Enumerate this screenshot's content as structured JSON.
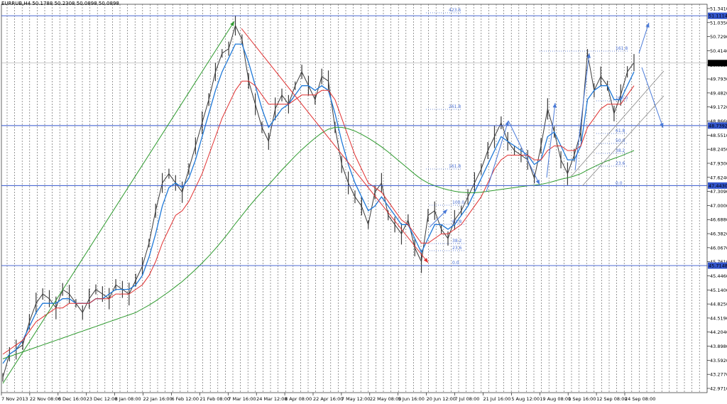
{
  "header": {
    "symbol": "EURRUB,H4",
    "ohlc": "50.1788 50.2308 50.0898 50.0898"
  },
  "colors": {
    "background": "#ffffff",
    "price": "#3a3a3a",
    "ma_fast": "#1e78d8",
    "ma_mid": "#e03030",
    "ma_slow": "#2e9a2e",
    "hline": "#3355cc",
    "label_bg": "#3355cc",
    "current_bg": "#000000",
    "fib": "#4a6fd4",
    "arrow_up_green": "#2e9a2e",
    "arrow_red": "#e03030",
    "arrow_blue": "#4a7ad8"
  },
  "chart_data": {
    "type": "line",
    "title": "",
    "x_tick_labels": [
      "7 Nov 2013",
      "22 Nov 08:00",
      "6 Dec 16:00",
      "23 Dec 12:00",
      "8 Jan 08:00",
      "22 Jan 16:00",
      "6 Feb 12:00",
      "21 Feb 08:00",
      "7 Mar 16:00",
      "24 Mar 12:00",
      "8 Apr 08:00",
      "22 Apr 16:00",
      "7 May 12:00",
      "22 May 08:00",
      "5 Jun 16:00",
      "20 Jun 12:00",
      "7 Jul 08:00",
      "21 Jul 16:00",
      "5 Aug 12:00",
      "19 Aug 08:00",
      "1 Sep 16:00",
      "12 Sep 08:00",
      "24 Sep 08:00"
    ],
    "y_tick_labels": [
      "51.3410",
      "51.0350",
      "50.7290",
      "50.4140",
      "50.0898",
      "49.7930",
      "49.4820",
      "49.1720",
      "48.8660",
      "48.5510",
      "48.2450",
      "47.9300",
      "47.6240",
      "47.3090",
      "47.0000",
      "46.6880",
      "46.3820",
      "46.0670",
      "45.7610",
      "45.4460",
      "45.1400",
      "44.8250",
      "44.5190",
      "44.2040",
      "43.8980",
      "43.5920",
      "43.2770",
      "42.9710"
    ],
    "ylim": [
      42.97,
      51.36
    ],
    "current_price": "50.0898",
    "horizontal_levels": [
      {
        "value": 51.1114,
        "label": "51.1114"
      },
      {
        "value": 48.7392,
        "label": "48.7392"
      },
      {
        "value": 47.443,
        "label": "47.4430"
      },
      {
        "value": 45.7148,
        "label": "45.7148"
      }
    ],
    "fib_labels": [
      "423.6",
      "261.8",
      "161.8",
      "100.0",
      "61.8",
      "38.2",
      "23.6",
      "0.0",
      "161.8",
      "100.0",
      "61.8",
      "50.0",
      "38.2",
      "23.6",
      "0.0"
    ],
    "series": [
      {
        "name": "Price",
        "values": [
          43.3,
          43.8,
          43.9,
          44.0,
          44.5,
          44.9,
          45.1,
          45.0,
          44.8,
          45.2,
          45.1,
          44.9,
          44.7,
          45.0,
          45.2,
          45.1,
          45.0,
          45.3,
          45.2,
          45.1,
          45.4,
          45.7,
          46.2,
          46.9,
          47.5,
          47.7,
          47.5,
          47.3,
          47.8,
          48.3,
          48.8,
          49.3,
          49.9,
          50.3,
          50.4,
          50.9,
          50.6,
          49.7,
          49.2,
          48.7,
          48.4,
          49.1,
          49.4,
          49.2,
          49.6,
          49.9,
          49.6,
          49.3,
          49.8,
          49.7,
          48.7,
          47.9,
          47.5,
          47.2,
          47.0,
          46.6,
          47.3,
          47.5,
          46.8,
          46.6,
          46.4,
          46.7,
          46.1,
          45.8,
          46.8,
          46.9,
          46.5,
          46.3,
          46.7,
          46.9,
          47.2,
          47.5,
          47.8,
          48.2,
          48.5,
          48.8,
          48.4,
          48.2,
          48.1,
          48.0,
          47.6,
          48.3,
          49.1,
          48.6,
          48.0,
          47.7,
          48.1,
          48.6,
          50.3,
          49.5,
          49.8,
          49.6,
          49.0,
          49.4,
          49.9,
          50.1
        ]
      },
      {
        "name": "MA fast",
        "values": [
          43.6,
          43.8,
          43.9,
          44.1,
          44.4,
          44.7,
          44.9,
          44.9,
          44.9,
          45.0,
          45.0,
          44.9,
          44.9,
          44.9,
          45.0,
          45.0,
          45.1,
          45.2,
          45.2,
          45.2,
          45.3,
          45.5,
          45.9,
          46.4,
          47.0,
          47.4,
          47.5,
          47.4,
          47.6,
          48.0,
          48.5,
          49.0,
          49.5,
          49.9,
          50.2,
          50.5,
          50.5,
          50.1,
          49.6,
          49.1,
          48.7,
          48.9,
          49.1,
          49.2,
          49.4,
          49.6,
          49.6,
          49.5,
          49.6,
          49.5,
          49.0,
          48.4,
          47.9,
          47.5,
          47.2,
          46.9,
          47.0,
          47.2,
          47.0,
          46.8,
          46.6,
          46.6,
          46.3,
          46.0,
          46.3,
          46.6,
          46.6,
          46.5,
          46.6,
          46.8,
          47.0,
          47.3,
          47.6,
          47.9,
          48.2,
          48.5,
          48.4,
          48.3,
          48.2,
          48.1,
          47.9,
          48.0,
          48.5,
          48.6,
          48.3,
          48.0,
          48.0,
          48.3,
          49.3,
          49.5,
          49.6,
          49.6,
          49.3,
          49.3,
          49.6,
          49.9
        ]
      },
      {
        "name": "MA mid",
        "values": [
          43.8,
          43.9,
          44.0,
          44.1,
          44.3,
          44.5,
          44.6,
          44.7,
          44.8,
          44.8,
          44.9,
          44.9,
          44.9,
          44.9,
          45.0,
          45.0,
          45.0,
          45.1,
          45.1,
          45.1,
          45.2,
          45.3,
          45.5,
          45.8,
          46.2,
          46.5,
          46.8,
          46.9,
          47.1,
          47.4,
          47.7,
          48.1,
          48.5,
          48.9,
          49.2,
          49.5,
          49.7,
          49.7,
          49.6,
          49.4,
          49.2,
          49.2,
          49.2,
          49.2,
          49.3,
          49.4,
          49.4,
          49.4,
          49.5,
          49.5,
          49.3,
          48.9,
          48.5,
          48.1,
          47.8,
          47.5,
          47.4,
          47.3,
          47.1,
          46.9,
          46.7,
          46.6,
          46.4,
          46.2,
          46.2,
          46.3,
          46.4,
          46.4,
          46.5,
          46.6,
          46.8,
          47.0,
          47.2,
          47.5,
          47.8,
          48.0,
          48.1,
          48.1,
          48.1,
          48.1,
          48.0,
          48.0,
          48.2,
          48.3,
          48.3,
          48.2,
          48.2,
          48.3,
          48.7,
          48.9,
          49.1,
          49.2,
          49.2,
          49.2,
          49.4,
          49.6
        ]
      },
      {
        "name": "MA slow",
        "values": [
          43.7,
          43.75,
          43.8,
          43.85,
          43.9,
          43.95,
          44.0,
          44.05,
          44.1,
          44.15,
          44.2,
          44.25,
          44.3,
          44.35,
          44.4,
          44.45,
          44.5,
          44.55,
          44.6,
          44.65,
          44.7,
          44.78,
          44.86,
          44.95,
          45.05,
          45.15,
          45.26,
          45.37,
          45.5,
          45.63,
          45.77,
          45.92,
          46.08,
          46.25,
          46.43,
          46.62,
          46.8,
          46.98,
          47.15,
          47.31,
          47.46,
          47.62,
          47.78,
          47.93,
          48.08,
          48.22,
          48.35,
          48.47,
          48.58,
          48.66,
          48.7,
          48.7,
          48.67,
          48.62,
          48.55,
          48.47,
          48.38,
          48.28,
          48.17,
          48.05,
          47.93,
          47.81,
          47.69,
          47.58,
          47.5,
          47.44,
          47.39,
          47.35,
          47.32,
          47.3,
          47.29,
          47.29,
          47.3,
          47.32,
          47.34,
          47.36,
          47.38,
          47.4,
          47.42,
          47.44,
          47.45,
          47.47,
          47.5,
          47.54,
          47.58,
          47.61,
          47.65,
          47.7,
          47.78,
          47.85,
          47.92,
          47.98,
          48.03,
          48.08,
          48.14,
          48.2
        ]
      }
    ]
  }
}
